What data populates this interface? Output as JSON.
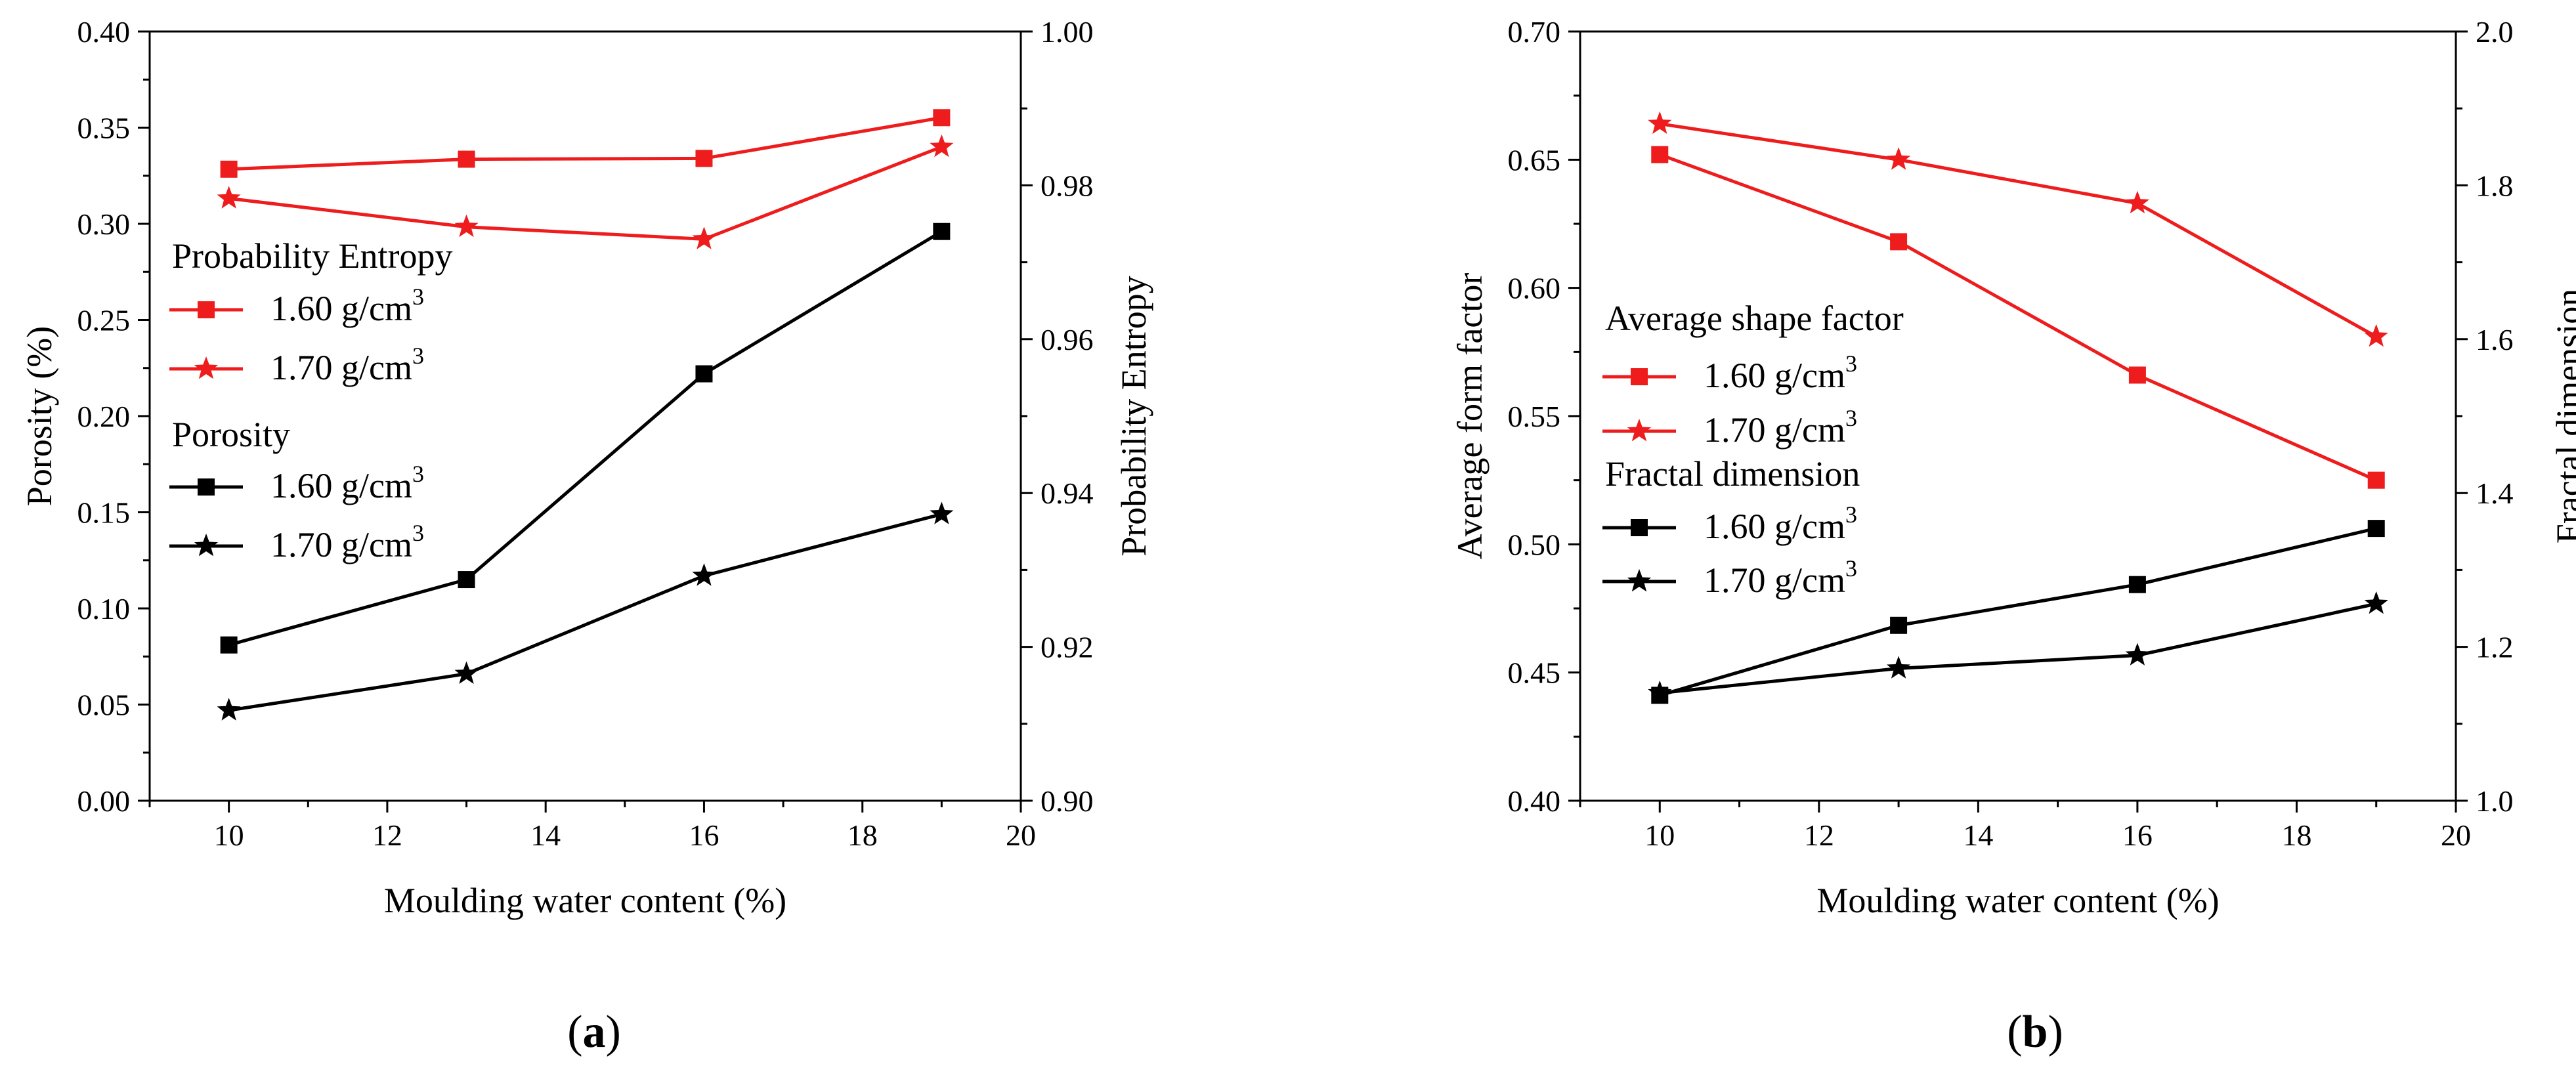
{
  "colors": {
    "red": "#ee1c1c",
    "black": "#000000"
  },
  "chart_data": [
    {
      "type": "line",
      "panel_label": {
        "open": "(",
        "letter": "a",
        "close": ")"
      },
      "title": "",
      "xlabel": "Moulding water content (%)",
      "ylabel_left": "Porosity (%)",
      "ylabel_right": "Probability Entropy",
      "xlim": [
        9,
        20
      ],
      "ylim_left": [
        0.0,
        0.4
      ],
      "ylim_right": [
        0.9,
        1.0
      ],
      "xticks": [
        "10",
        "12",
        "14",
        "16",
        "18",
        "20"
      ],
      "yticks_left": [
        "0.00",
        "0.05",
        "0.10",
        "0.15",
        "0.20",
        "0.25",
        "0.30",
        "0.35",
        "0.40"
      ],
      "yticks_right": [
        "0.90",
        "0.92",
        "0.94",
        "0.96",
        "0.98",
        "1.00"
      ],
      "x": [
        10,
        13,
        16,
        19
      ],
      "series": [
        {
          "name": "Probability Entropy 1.60 g/cm3",
          "label": "1.60 g/cm",
          "sup": "3",
          "axis": "right",
          "color": "red",
          "marker": "square",
          "values": [
            0.9821,
            0.9834,
            0.9835,
            0.9888
          ]
        },
        {
          "name": "Probability Entropy 1.70 g/cm3",
          "label": "1.70 g/cm",
          "sup": "3",
          "axis": "right",
          "color": "red",
          "marker": "star",
          "values": [
            0.9783,
            0.9746,
            0.973,
            0.985
          ]
        },
        {
          "name": "Porosity 1.60 g/cm3",
          "label": "1.60 g/cm",
          "sup": "3",
          "axis": "left",
          "color": "black",
          "marker": "square",
          "values": [
            0.081,
            0.115,
            0.222,
            0.296
          ]
        },
        {
          "name": "Porosity 1.70 g/cm3",
          "label": "1.70 g/cm",
          "sup": "3",
          "axis": "left",
          "color": "black",
          "marker": "star",
          "values": [
            0.047,
            0.066,
            0.117,
            0.149
          ]
        }
      ],
      "legend": {
        "group1_title": "Probability Entropy",
        "group2_title": "Porosity"
      }
    },
    {
      "type": "line",
      "panel_label": {
        "open": "(",
        "letter": "b",
        "close": ")"
      },
      "title": "",
      "xlabel": "Moulding water content (%)",
      "ylabel_left": "Average form factor",
      "ylabel_right": "Fractal dimension",
      "xlim": [
        9,
        20
      ],
      "ylim_left": [
        0.4,
        0.7
      ],
      "ylim_right": [
        1.0,
        2.0
      ],
      "xticks": [
        "10",
        "12",
        "14",
        "16",
        "18",
        "20"
      ],
      "yticks_left": [
        "0.40",
        "0.45",
        "0.50",
        "0.55",
        "0.60",
        "0.65",
        "0.70"
      ],
      "yticks_right": [
        "1.0",
        "1.2",
        "1.4",
        "1.6",
        "1.8",
        "2.0"
      ],
      "x": [
        10,
        13,
        16,
        19
      ],
      "series": [
        {
          "name": "Average shape factor 1.60 g/cm3",
          "label": "1.60 g/cm",
          "sup": "3",
          "axis": "left",
          "color": "red",
          "marker": "square",
          "values": [
            0.652,
            0.618,
            0.566,
            0.525
          ]
        },
        {
          "name": "Average shape factor 1.70 g/cm3",
          "label": "1.70 g/cm",
          "sup": "3",
          "axis": "left",
          "color": "red",
          "marker": "star",
          "values": [
            0.664,
            0.65,
            0.633,
            0.581
          ]
        },
        {
          "name": "Fractal dimension 1.60 g/cm3",
          "label": "1.60 g/cm",
          "sup": "3",
          "axis": "right",
          "color": "black",
          "marker": "square",
          "values": [
            1.137,
            1.228,
            1.281,
            1.354
          ]
        },
        {
          "name": "Fractal dimension 1.70 g/cm3",
          "label": "1.70 g/cm",
          "sup": "3",
          "axis": "right",
          "color": "black",
          "marker": "star",
          "values": [
            1.14,
            1.172,
            1.189,
            1.256
          ]
        }
      ],
      "legend": {
        "group1_title": "Average shape factor",
        "group2_title": "Fractal dimension"
      }
    }
  ]
}
